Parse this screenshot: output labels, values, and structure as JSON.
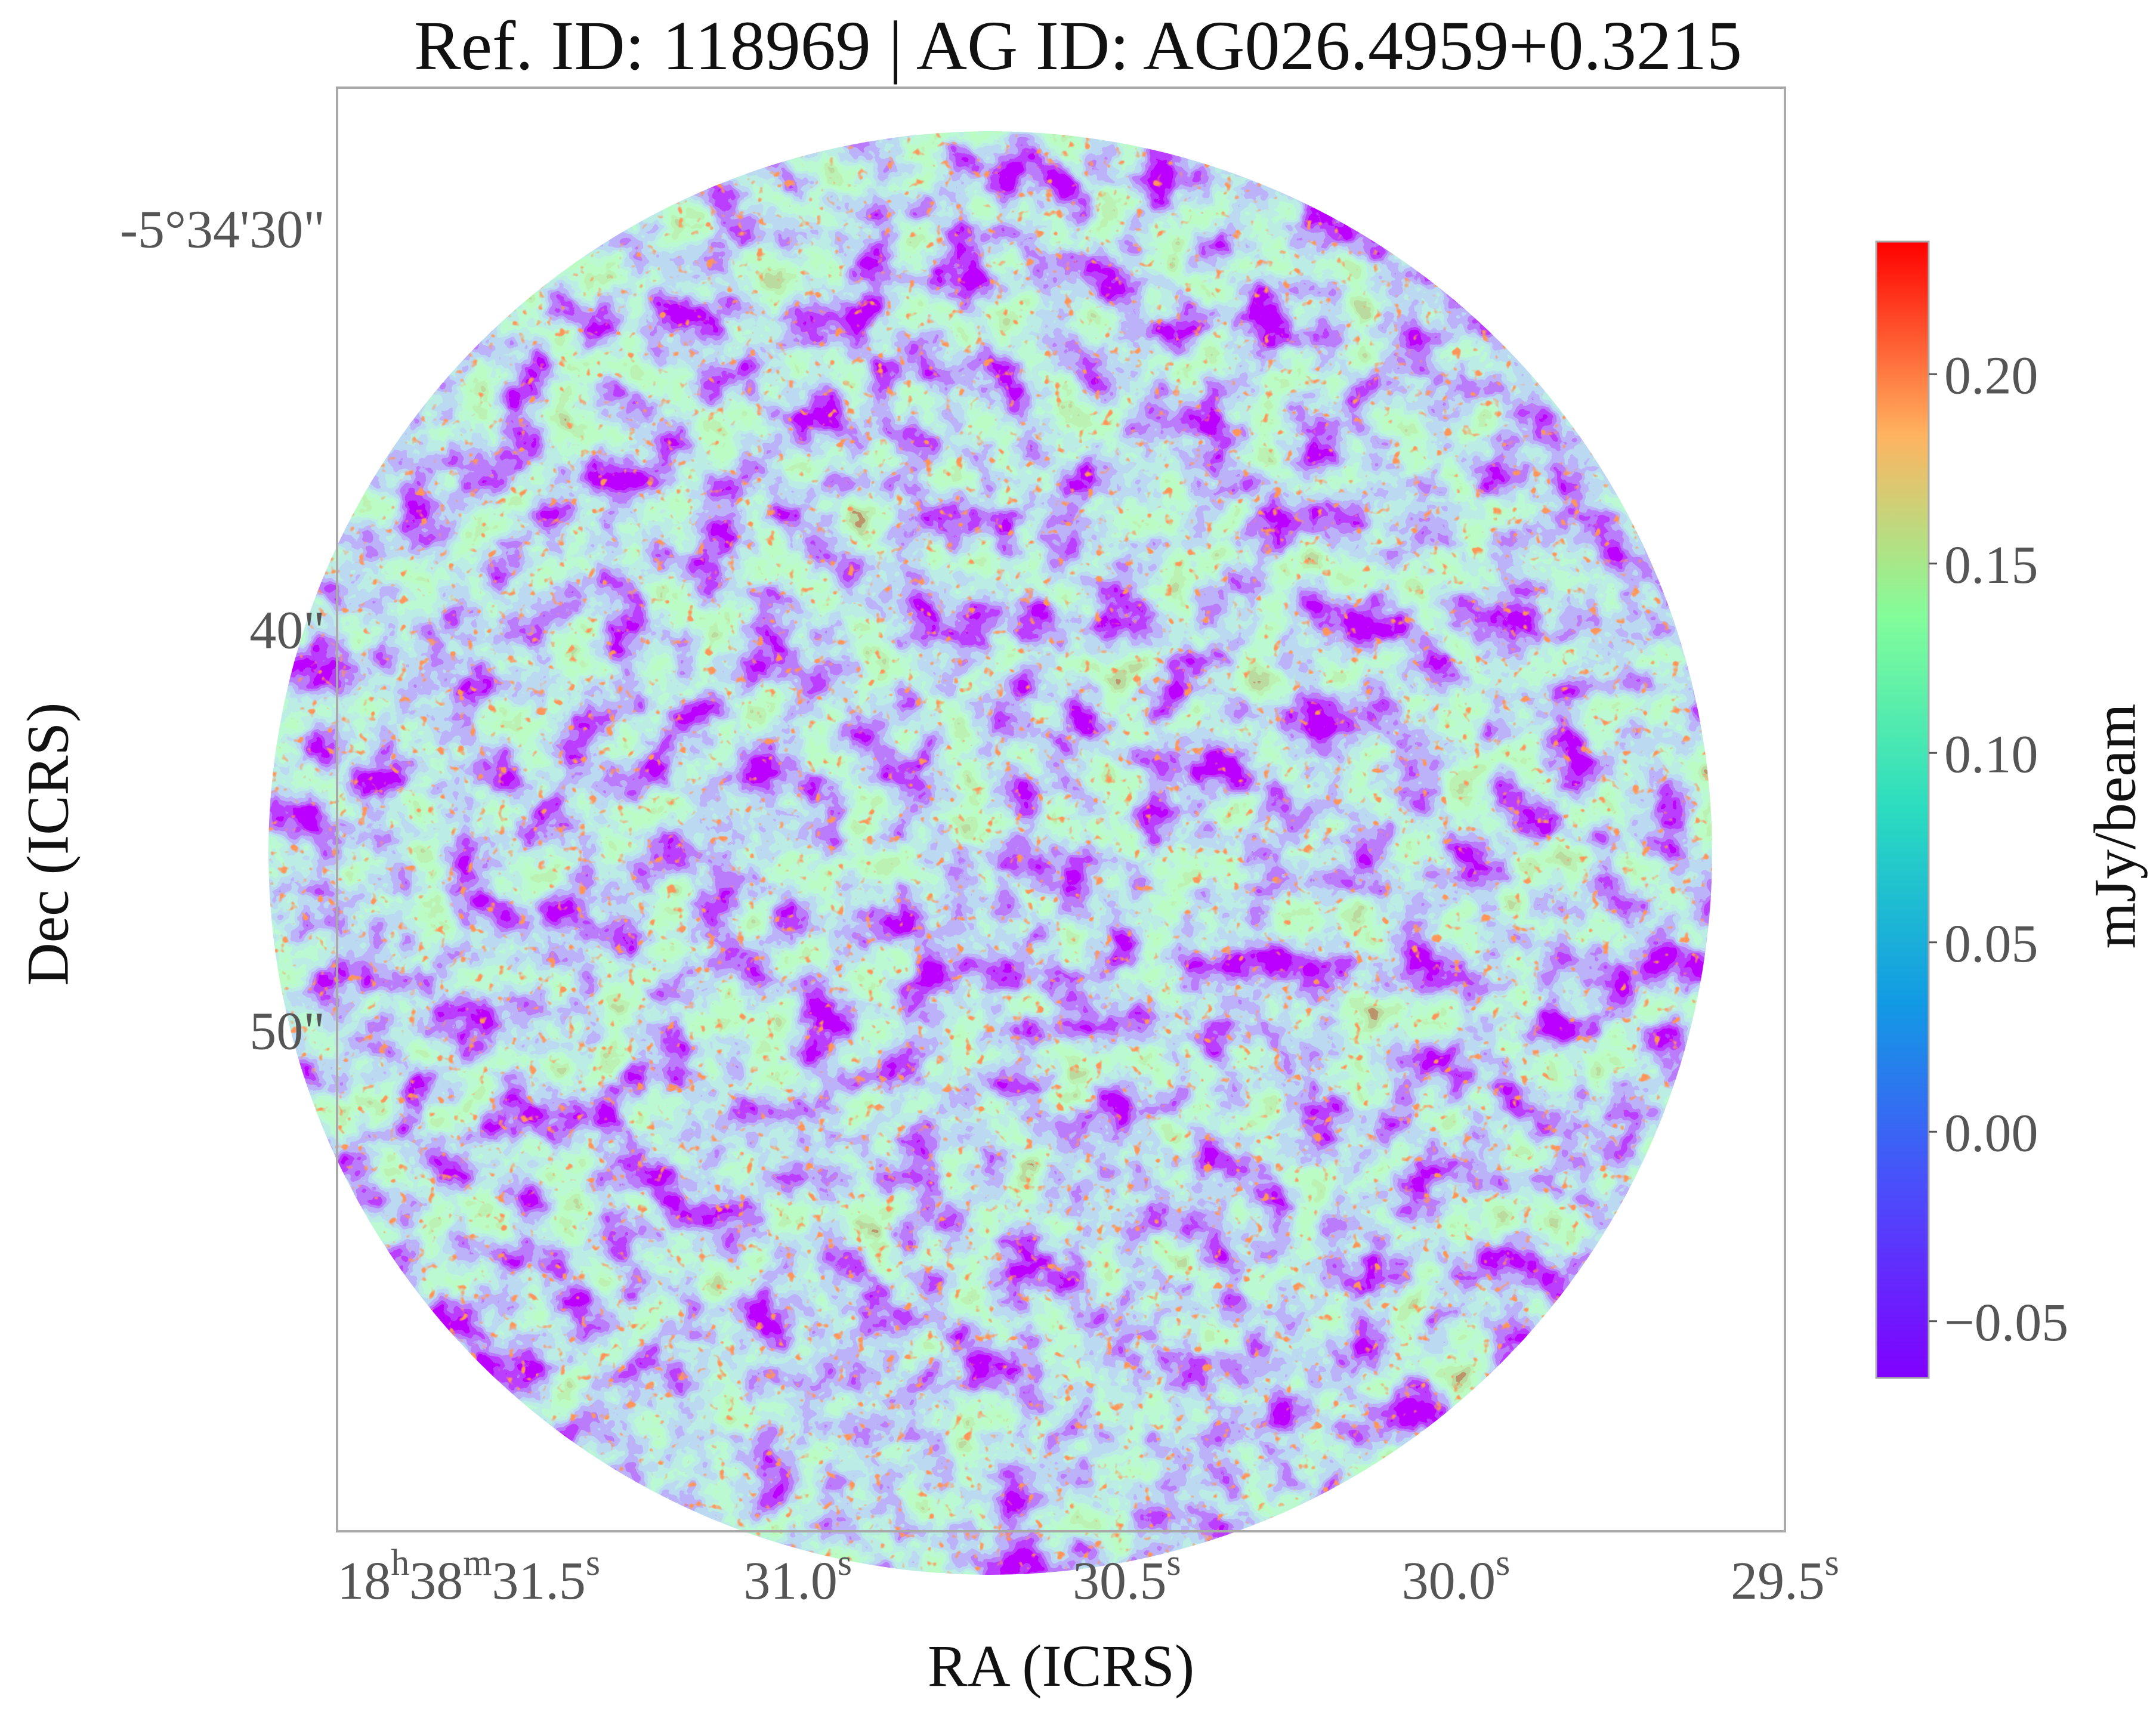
{
  "chart_data": {
    "type": "heatmap",
    "title": "Ref. ID: 118969 | AG ID: AG026.4959+0.3215",
    "xlabel": "RA (ICRS)",
    "ylabel": "Dec (ICRS)",
    "colorbar_label": "mJy/beam",
    "colormap": "rainbow",
    "color_range": [
      -0.065,
      0.235
    ],
    "colorbar_ticks": [
      {
        "value": -0.05,
        "label": "−0.05"
      },
      {
        "value": 0.0,
        "label": "0.00"
      },
      {
        "value": 0.05,
        "label": "0.05"
      },
      {
        "value": 0.1,
        "label": "0.10"
      },
      {
        "value": 0.15,
        "label": "0.15"
      },
      {
        "value": 0.2,
        "label": "0.20"
      }
    ],
    "x_range_seconds": [
      31.7,
      29.5
    ],
    "x_ticks": [
      {
        "value": 31.5,
        "parts": [
          "18",
          "h",
          "38",
          "m",
          "31.5",
          "s"
        ]
      },
      {
        "value": 31.0,
        "parts": [
          "31.0",
          "s"
        ]
      },
      {
        "value": 30.5,
        "parts": [
          "30.5",
          "s"
        ]
      },
      {
        "value": 30.0,
        "parts": [
          "30.0",
          "s"
        ]
      },
      {
        "value": 29.5,
        "parts": [
          "29.5",
          "s"
        ]
      }
    ],
    "y_range_arcsec": [
      26.5,
      62.5
    ],
    "y_ticks": [
      {
        "value": 30,
        "label": "-5°34'30\""
      },
      {
        "value": 40,
        "label": "40\""
      },
      {
        "value": 50,
        "label": "50\""
      }
    ],
    "field_shape": "circle",
    "background_color": "#ffffff",
    "frame_color": "#a9a9a9"
  }
}
